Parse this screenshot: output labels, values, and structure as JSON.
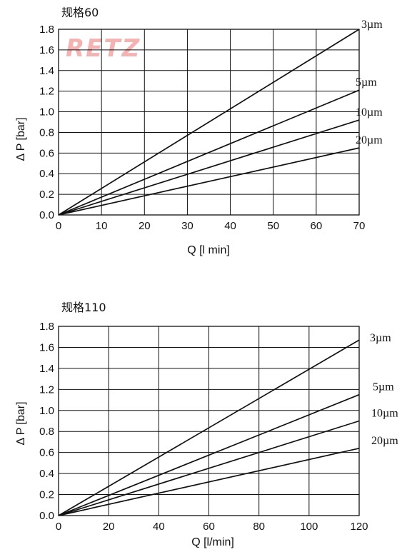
{
  "watermark": {
    "text": "RETZ",
    "color": "#f4b3b3"
  },
  "chart_data": [
    {
      "type": "line",
      "title": "规格60",
      "xlabel": "Q [l min]",
      "ylabel": "Δ P [bar]",
      "xlim": [
        0,
        70
      ],
      "ylim": [
        0,
        1.8
      ],
      "x_ticks": [
        "0",
        "10",
        "20",
        "30",
        "40",
        "50",
        "60",
        "70"
      ],
      "y_ticks": [
        "0.0",
        "0.2",
        "0.4",
        "0.6",
        "0.8",
        "1.0",
        "1.2",
        "1.4",
        "1.6",
        "1.8"
      ],
      "grid": true,
      "series": [
        {
          "name": "3µm",
          "x": [
            0,
            70
          ],
          "y": [
            0,
            1.8
          ]
        },
        {
          "name": "5µm",
          "x": [
            0,
            70
          ],
          "y": [
            0,
            1.21
          ]
        },
        {
          "name": "10µm",
          "x": [
            0,
            70
          ],
          "y": [
            0,
            0.92
          ]
        },
        {
          "name": "20µm",
          "x": [
            0,
            70
          ],
          "y": [
            0,
            0.65
          ]
        }
      ]
    },
    {
      "type": "line",
      "title": "规格110",
      "xlabel": "Q [l/min]",
      "ylabel": "Δ P [bar]",
      "xlim": [
        0,
        120
      ],
      "ylim": [
        0,
        1.8
      ],
      "x_ticks": [
        "0",
        "20",
        "40",
        "60",
        "80",
        "100",
        "120"
      ],
      "y_ticks": [
        "0.0",
        "0.2",
        "0.4",
        "0.6",
        "0.8",
        "1.0",
        "1.2",
        "1.4",
        "1.6",
        "1.8"
      ],
      "grid": true,
      "series": [
        {
          "name": "3µm",
          "x": [
            0,
            120
          ],
          "y": [
            0,
            1.67
          ]
        },
        {
          "name": "5µm",
          "x": [
            0,
            120
          ],
          "y": [
            0,
            1.15
          ]
        },
        {
          "name": "10µm",
          "x": [
            0,
            120
          ],
          "y": [
            0,
            0.9
          ]
        },
        {
          "name": "20µm",
          "x": [
            0,
            120
          ],
          "y": [
            0,
            0.64
          ]
        }
      ]
    }
  ]
}
